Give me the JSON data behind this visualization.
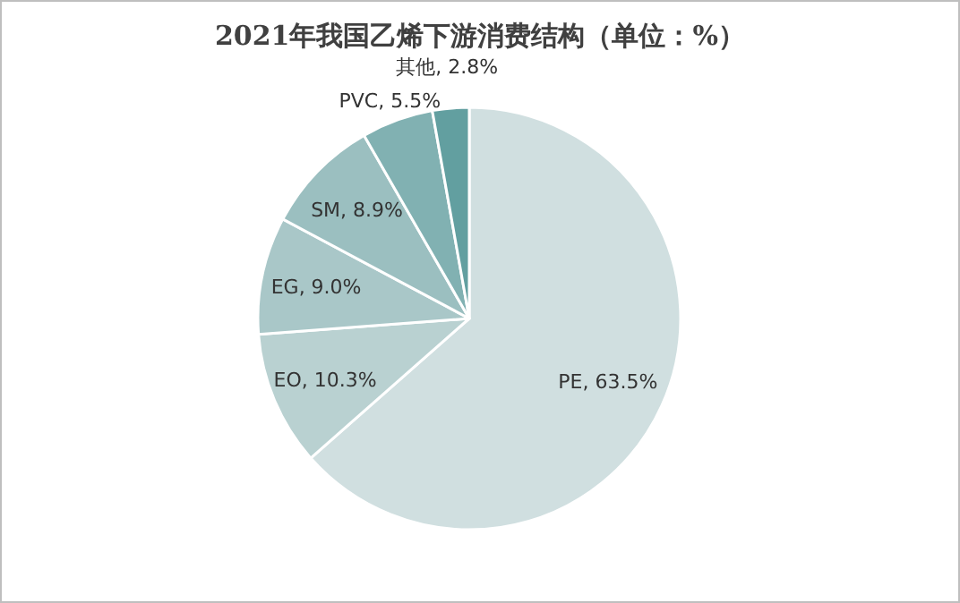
{
  "chart_data": {
    "type": "pie",
    "title": "2021年我国乙烯下游消费结构（单位：%）",
    "categories": [
      "PE",
      "EO",
      "EG",
      "SM",
      "PVC",
      "其他"
    ],
    "values": [
      63.5,
      10.3,
      9.0,
      8.9,
      5.5,
      2.8
    ],
    "colors": [
      "#d0dfe0",
      "#b9d1d1",
      "#a9c7c8",
      "#9bbfc0",
      "#81b1b2",
      "#629fa0"
    ],
    "value_labels": [
      ", 63.5%",
      ", 10.3%",
      ", 9.0%",
      ", 8.9%",
      ", 5.5%",
      ", 2.8%"
    ]
  }
}
